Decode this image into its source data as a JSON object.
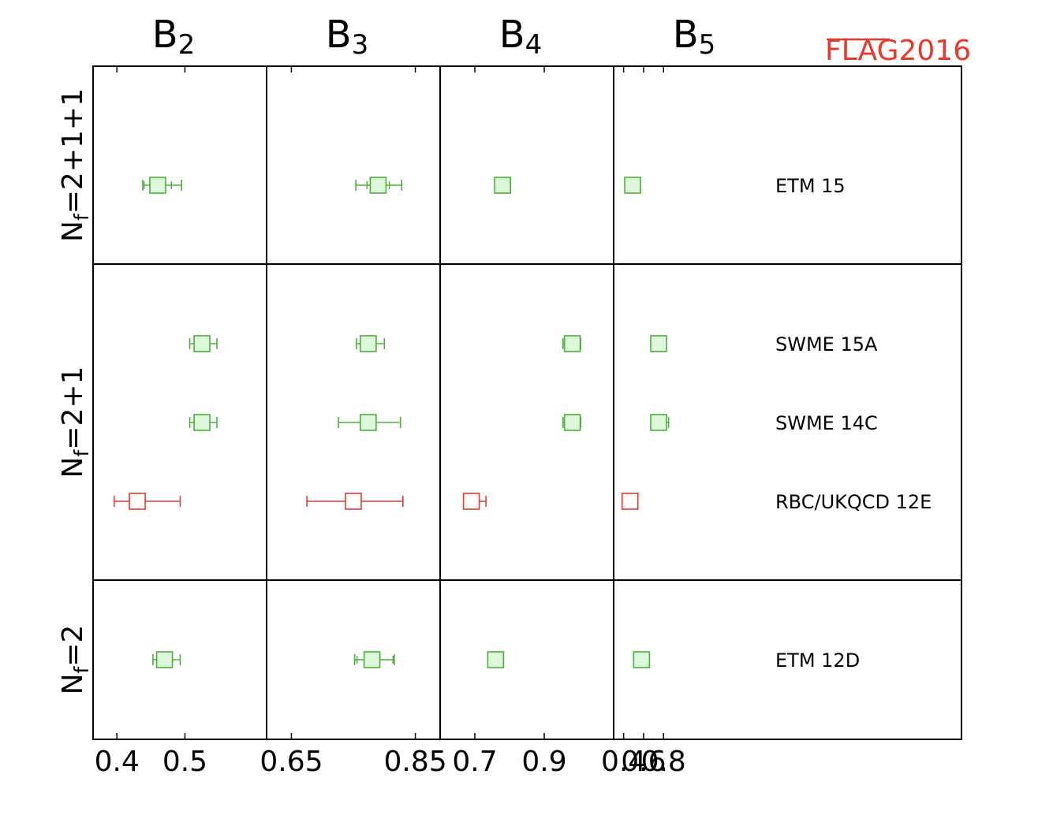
{
  "chart_data": {
    "type": "scatter",
    "brand": {
      "flag": "FLAG",
      "year": "2016",
      "color": "#e8392b"
    },
    "colors": {
      "green": "#4cae3a",
      "green_fill": "#ddf8da",
      "red": "#e8392b",
      "red_fill": "#ffffff"
    },
    "panels": [
      {
        "id": "b2",
        "title_main": "B",
        "title_sub": "2",
        "xlim": [
          0.365,
          0.62
        ],
        "ticks": [
          0.4,
          0.5
        ],
        "tick_labels": [
          "0.4",
          "0.5"
        ]
      },
      {
        "id": "b3",
        "title_main": "B",
        "title_sub": "3",
        "xlim": [
          0.61,
          0.89
        ],
        "ticks": [
          0.65,
          0.85
        ],
        "tick_labels": [
          "0.65",
          "0.85"
        ]
      },
      {
        "id": "b4",
        "title_main": "B",
        "title_sub": "4",
        "xlim": [
          0.6,
          1.1
        ],
        "ticks": [
          0.7,
          0.9
        ],
        "tick_labels": [
          "0.7",
          "0.9"
        ]
      },
      {
        "id": "b5",
        "title_main": "B",
        "title_sub": "5",
        "xlim": [
          0.3,
          2.04
        ],
        "ticks": [
          0.4,
          0.6,
          0.8
        ],
        "tick_labels": [
          "0.4",
          "0.6",
          "0.8"
        ]
      }
    ],
    "row_groups": [
      {
        "label_main": "N",
        "label_sub": "f",
        "label_rest": "=2+1+1"
      },
      {
        "label_main": "N",
        "label_sub": "f",
        "label_rest": "=2+1"
      },
      {
        "label_main": "N",
        "label_sub": "f",
        "label_rest": "=2"
      }
    ],
    "entries": [
      {
        "label": "ETM 15",
        "group": 0,
        "status": "green",
        "values": {
          "b2": [
            0.46,
            0.438,
            0.495,
            0.44,
            0.48
          ],
          "b3": [
            0.79,
            0.754,
            0.828,
            0.772,
            0.808
          ],
          "b4": [
            0.78,
            0.762,
            0.798
          ],
          "b5": [
            0.49,
            0.475,
            0.515,
            0.48,
            0.505
          ]
        }
      },
      {
        "label": "SWME 15A",
        "group": 1,
        "status": "green",
        "values": {
          "b2": [
            0.525,
            0.507,
            0.547
          ],
          "b3": [
            0.774,
            0.755,
            0.8
          ],
          "b4": [
            0.981,
            0.954,
            1.005
          ],
          "b5": [
            0.751,
            0.701,
            0.821
          ]
        }
      },
      {
        "label": "SWME 14C",
        "group": 1,
        "status": "green",
        "values": {
          "b2": [
            0.525,
            0.507,
            0.547
          ],
          "b3": [
            0.774,
            0.726,
            0.826
          ],
          "b4": [
            0.981,
            0.954,
            1.005
          ],
          "b5": [
            0.751,
            0.681,
            0.851
          ]
        }
      },
      {
        "label": "RBC/UKQCD 12E",
        "group": 1,
        "status": "red",
        "values": {
          "b2": [
            0.43,
            0.396,
            0.493
          ],
          "b3": [
            0.75,
            0.675,
            0.83
          ],
          "b4": [
            0.69,
            0.673,
            0.732
          ],
          "b5": [
            0.464,
            0.394,
            0.514
          ]
        }
      },
      {
        "label": "ETM 12D",
        "group": 2,
        "status": "green",
        "values": {
          "b2": [
            0.47,
            0.453,
            0.493
          ],
          "b3": [
            0.78,
            0.752,
            0.816,
            0.756,
            0.814
          ],
          "b4": [
            0.76,
            0.752,
            0.776
          ],
          "b5": [
            0.58
          ]
        }
      }
    ]
  }
}
